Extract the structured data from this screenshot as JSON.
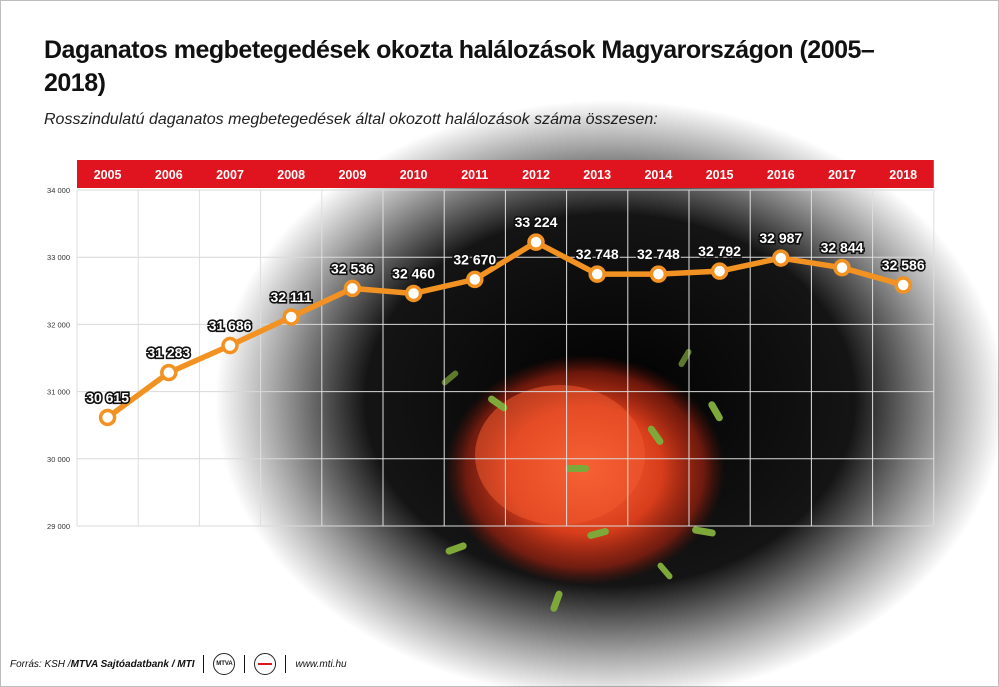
{
  "title": "Daganatos megbetegedések okozta halálozások Magyarországon (2005–2018)",
  "subtitle": "Rosszindulatú daganatos megbetegedések által okozott halálozások száma összesen:",
  "footer": {
    "source_prefix": "Forrás: KSH / ",
    "source_bold": "MTVA Sajtóadatbank / MTI",
    "logo1_text": "MTVA",
    "website": "www.mti.hu"
  },
  "colors": {
    "header_band": "#e0141e",
    "line": "#f29222",
    "marker_fill": "#ffffff",
    "label_text": "#ffffff"
  },
  "chart_data": {
    "type": "line",
    "title": "Daganatos megbetegedések okozta halálozások Magyarországon (2005–2018)",
    "subtitle": "Rosszindulatú daganatos megbetegedések által okozott halálozások száma összesen:",
    "categories": [
      "2005",
      "2006",
      "2007",
      "2008",
      "2009",
      "2010",
      "2011",
      "2012",
      "2013",
      "2014",
      "2015",
      "2016",
      "2017",
      "2018"
    ],
    "values": [
      30615,
      31283,
      31686,
      32111,
      32536,
      32460,
      32670,
      33224,
      32748,
      32748,
      32792,
      32987,
      32844,
      32586
    ],
    "value_labels": [
      "30 615",
      "31 283",
      "31 686",
      "32 111",
      "32 536",
      "32 460",
      "32 670",
      "33 224",
      "32 748",
      "32 748",
      "32 792",
      "32 987",
      "32 844",
      "32 586"
    ],
    "yticks": [
      29000,
      30000,
      31000,
      32000,
      33000,
      34000
    ],
    "ytick_labels": [
      "29 000",
      "30 000",
      "31 000",
      "32 000",
      "33 000",
      "34 000"
    ],
    "ylim": [
      29000,
      34000
    ],
    "xlabel": "",
    "ylabel": "",
    "grid": true,
    "legend": "none"
  }
}
